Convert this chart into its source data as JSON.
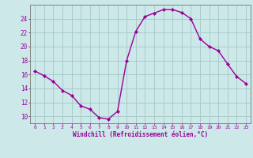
{
  "x": [
    0,
    1,
    2,
    3,
    4,
    5,
    6,
    7,
    8,
    9,
    10,
    11,
    12,
    13,
    14,
    15,
    16,
    17,
    18,
    19,
    20,
    21,
    22,
    23
  ],
  "y": [
    16.5,
    15.8,
    15.0,
    13.7,
    13.0,
    11.5,
    11.0,
    9.8,
    9.6,
    10.7,
    18.0,
    22.2,
    24.3,
    24.8,
    25.3,
    25.3,
    24.9,
    24.0,
    21.1,
    20.0,
    19.4,
    17.5,
    15.7,
    14.7
  ],
  "line_color": "#990099",
  "marker": "D",
  "marker_size": 2.2,
  "bg_color": "#cce8e8",
  "grid_color": "#aacccc",
  "xlabel": "Windchill (Refroidissement éolien,°C)",
  "xlim": [
    -0.5,
    23.5
  ],
  "ylim": [
    9,
    26
  ],
  "yticks": [
    10,
    12,
    14,
    16,
    18,
    20,
    22,
    24
  ],
  "xticks": [
    0,
    1,
    2,
    3,
    4,
    5,
    6,
    7,
    8,
    9,
    10,
    11,
    12,
    13,
    14,
    15,
    16,
    17,
    18,
    19,
    20,
    21,
    22,
    23
  ]
}
